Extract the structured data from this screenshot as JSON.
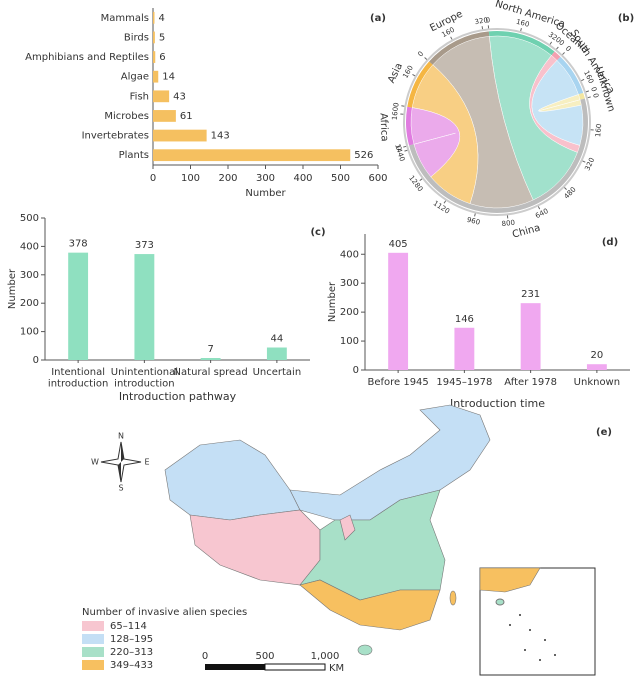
{
  "chart_data": [
    {
      "type": "barh",
      "panel": "(a)",
      "categories": [
        "Mammals",
        "Birds",
        "Amphibians and Reptiles",
        "Algae",
        "Fish",
        "Microbes",
        "Invertebrates",
        "Plants"
      ],
      "values": [
        4,
        5,
        6,
        14,
        43,
        61,
        143,
        526
      ],
      "color": "#f5c060",
      "xlim": [
        0,
        600
      ],
      "xticks": [
        0,
        100,
        200,
        300,
        400,
        500,
        600
      ],
      "xlabel": "Number"
    },
    {
      "type": "chord",
      "panel": "(b)",
      "sectors": [
        {
          "name": "Africa",
          "value": 200,
          "color": "#e07ce0",
          "ticks": [
            0,
            160
          ]
        },
        {
          "name": "Asia",
          "value": 260,
          "color": "#f5b642",
          "ticks": [
            0,
            160
          ]
        },
        {
          "name": "Europe",
          "value": 350,
          "color": "#a89a8a",
          "ticks": [
            0,
            160,
            320
          ]
        },
        {
          "name": "North America",
          "value": 360,
          "color": "#6fd1b0",
          "ticks": [
            0,
            160,
            320
          ]
        },
        {
          "name": "Oceania",
          "value": 40,
          "color": "#f4a0b0",
          "ticks": [
            0
          ]
        },
        {
          "name": "South America",
          "value": 220,
          "color": "#a8d4f0",
          "ticks": [
            0,
            160
          ]
        },
        {
          "name": "Unknown",
          "value": 30,
          "color": "#f3e6a0",
          "ticks": [
            0
          ]
        }
      ],
      "hub": {
        "name": "China",
        "value": 1460,
        "color": "#bdbdbd",
        "ticks": [
          0,
          160,
          320,
          480,
          640,
          800,
          960,
          1120,
          1280,
          1440
        ]
      }
    },
    {
      "type": "bar",
      "panel": "(c)",
      "categories": [
        "Intentional\nintroduction",
        "Unintentional\nintroduction",
        "Natural spread",
        "Uncertain"
      ],
      "values": [
        378,
        373,
        7,
        44
      ],
      "color": "#8fe0c0",
      "ylim": [
        0,
        500
      ],
      "yticks": [
        0,
        100,
        200,
        300,
        400,
        500
      ],
      "xlabel": "Introduction pathway",
      "ylabel": "Number"
    },
    {
      "type": "bar",
      "panel": "(d)",
      "categories": [
        "Before 1945",
        "1945–1978",
        "After 1978",
        "Unknown"
      ],
      "values": [
        405,
        146,
        231,
        20
      ],
      "color": "#f0a8f0",
      "ylim": [
        0,
        470
      ],
      "yticks": [
        0,
        100,
        200,
        300,
        400
      ],
      "xlabel": "Introduction time",
      "ylabel": "Number"
    },
    {
      "type": "map",
      "panel": "(e)",
      "legend": {
        "title": "Number of invasive alien species",
        "items": [
          {
            "label": "65–114",
            "color": "#f7c6d0"
          },
          {
            "label": "128–195",
            "color": "#c4dff5"
          },
          {
            "label": "220–313",
            "color": "#a8e0c8"
          },
          {
            "label": "349–433",
            "color": "#f7c060"
          }
        ]
      },
      "compass": [
        "N",
        "S",
        "W",
        "E"
      ],
      "scale_labels": [
        "0",
        "500",
        "1,000"
      ],
      "scale_unit": "KM"
    }
  ]
}
